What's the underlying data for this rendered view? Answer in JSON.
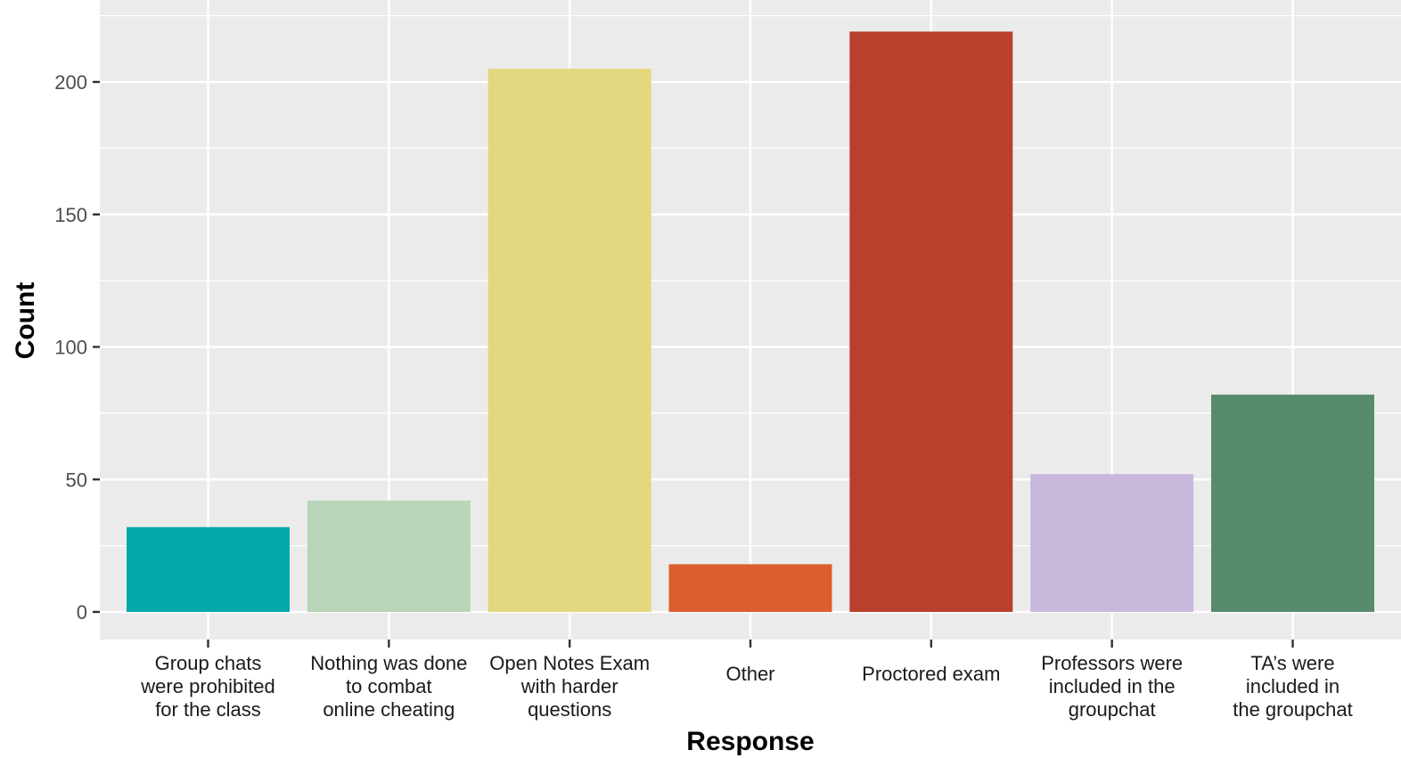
{
  "chart_data": {
    "type": "bar",
    "title": "",
    "xlabel": "Response",
    "ylabel": "Count",
    "ylim": [
      0,
      225
    ],
    "yticks": [
      0,
      50,
      100,
      150,
      200
    ],
    "grid": true,
    "legend": "none",
    "categories": [
      [
        "Group chats",
        "were prohibited",
        "for the class"
      ],
      [
        "Nothing was done",
        "to combat",
        "online cheating"
      ],
      [
        "Open Notes Exam",
        "with harder",
        "questions"
      ],
      [
        "Other"
      ],
      [
        "Proctored exam"
      ],
      [
        "Professors were",
        "included in the",
        "groupchat"
      ],
      [
        "TA’s were",
        "included in",
        "the groupchat"
      ]
    ],
    "values": [
      32,
      42,
      205,
      18,
      219,
      52,
      82
    ],
    "colors": [
      "#05A8AA",
      "#B8D5B8",
      "#E3D77F",
      "#DB5F2E",
      "#B9402C",
      "#C7B8DB",
      "#588B6B"
    ],
    "background": "#EBEBEB",
    "gridline_color": "#FFFFFF"
  }
}
